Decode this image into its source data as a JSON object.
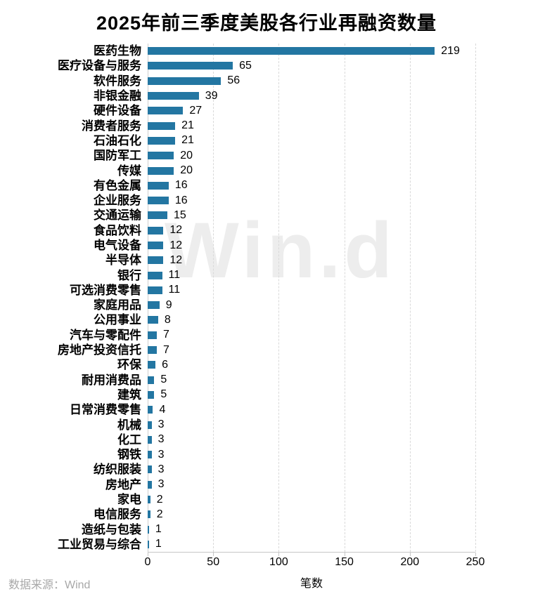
{
  "title": "2025年前三季度美股各行业再融资数量",
  "source_note": "数据来源：Wind",
  "watermark": "Win.d",
  "colors": {
    "bar": "#2376a2",
    "gridline": "#d9d9d9",
    "axis": "#c6c6c6",
    "watermark": "#ededed",
    "source_text": "#a8a8a8"
  },
  "chart_data": {
    "type": "bar",
    "orientation": "horizontal",
    "title": "2025年前三季度美股各行业再融资数量",
    "xlabel": "笔数",
    "ylabel": "",
    "xlim": [
      0,
      250
    ],
    "xticks": [
      0,
      50,
      100,
      150,
      200,
      250
    ],
    "grid": "vertical-dashed",
    "legend": "none",
    "categories": [
      "医药生物",
      "医疗设备与服务",
      "软件服务",
      "非银金融",
      "硬件设备",
      "消费者服务",
      "石油石化",
      "国防军工",
      "传媒",
      "有色金属",
      "企业服务",
      "交通运输",
      "食品饮料",
      "电气设备",
      "半导体",
      "银行",
      "可选消费零售",
      "家庭用品",
      "公用事业",
      "汽车与零配件",
      "房地产投资信托",
      "环保",
      "耐用消费品",
      "建筑",
      "日常消费零售",
      "机械",
      "化工",
      "钢铁",
      "纺织服装",
      "房地产",
      "家电",
      "电信服务",
      "造纸与包装",
      "工业贸易与综合"
    ],
    "values": [
      219,
      65,
      56,
      39,
      27,
      21,
      21,
      20,
      20,
      16,
      16,
      15,
      12,
      12,
      12,
      11,
      11,
      9,
      8,
      7,
      7,
      6,
      5,
      5,
      4,
      3,
      3,
      3,
      3,
      3,
      2,
      2,
      1,
      1
    ]
  }
}
